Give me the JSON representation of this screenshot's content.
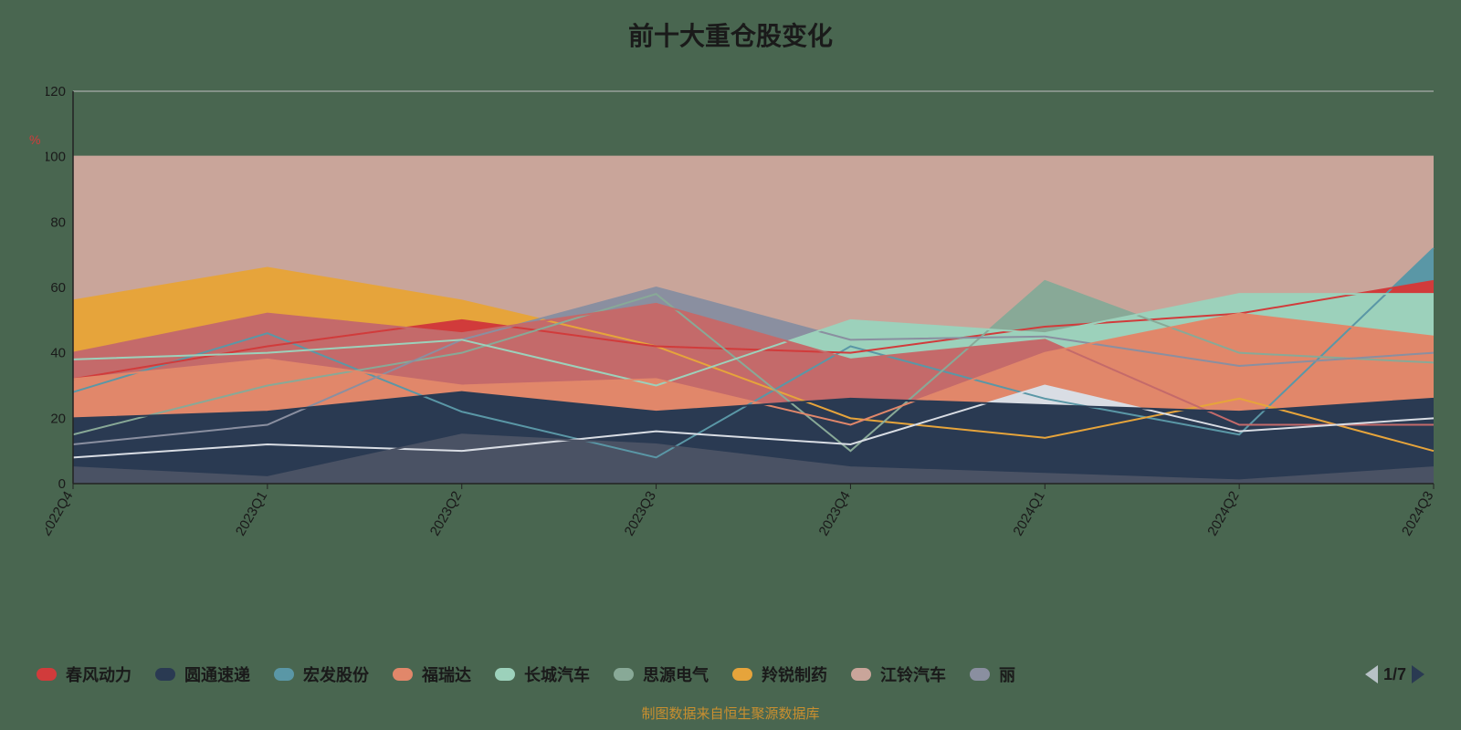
{
  "title": "前十大重仓股变化",
  "y_symbol": "%",
  "footer": "制图数据来自恒生聚源数据库",
  "pager": {
    "current": 1,
    "total": 7
  },
  "chart": {
    "type": "line-stacked-area",
    "background": "#496650",
    "categories": [
      "2022Q4",
      "2023Q1",
      "2023Q2",
      "2023Q3",
      "2023Q4",
      "2024Q1",
      "2024Q2",
      "2024Q3"
    ],
    "ylim": [
      0,
      120
    ],
    "ytick_step": 20,
    "yticks": [
      0,
      20,
      40,
      60,
      80,
      100,
      120
    ],
    "axis_color": "#222222",
    "grid_color": "#bfbfbf",
    "label_fontsize": 16,
    "tick_fontsize": 15,
    "xlabel_rotate": -60,
    "series": [
      {
        "name": "春风动力",
        "color": "#d13b3b",
        "values": [
          32,
          42,
          50,
          42,
          40,
          48,
          52,
          62
        ]
      },
      {
        "name": "圆通速递",
        "color": "#2a3a52",
        "values": [
          20,
          22,
          28,
          22,
          26,
          24,
          22,
          26
        ]
      },
      {
        "name": "宏发股份",
        "color": "#5a97a6",
        "values": [
          28,
          46,
          22,
          8,
          42,
          26,
          15,
          72
        ]
      },
      {
        "name": "福瑞达",
        "color": "#e1876a",
        "values": [
          32,
          38,
          30,
          32,
          18,
          40,
          52,
          45
        ]
      },
      {
        "name": "长城汽车",
        "color": "#9cd1bb",
        "values": [
          38,
          40,
          44,
          30,
          50,
          46,
          58,
          58
        ]
      },
      {
        "name": "思源电气",
        "color": "#88a997",
        "values": [
          15,
          30,
          40,
          58,
          10,
          62,
          40,
          37
        ]
      },
      {
        "name": "羚锐制药",
        "color": "#e6a43b",
        "values": [
          56,
          66,
          56,
          42,
          20,
          14,
          26,
          10
        ]
      },
      {
        "name": "江铃汽车",
        "color": "#c9a59a",
        "values": [
          100,
          100,
          100,
          100,
          100,
          100,
          100,
          100
        ]
      },
      {
        "name": "丽",
        "color": "#8a8fa0",
        "values": [
          12,
          18,
          44,
          60,
          44,
          45,
          36,
          40
        ]
      },
      {
        "name": "_extra1",
        "color": "#d9dde4",
        "values": [
          8,
          12,
          10,
          16,
          12,
          30,
          16,
          20
        ]
      },
      {
        "name": "_extra2",
        "color": "#4a5264",
        "values": [
          5,
          2,
          15,
          12,
          5,
          3,
          1,
          5
        ]
      },
      {
        "name": "_extra3",
        "color": "#c46a6a",
        "values": [
          40,
          52,
          46,
          55,
          38,
          44,
          18,
          18
        ]
      }
    ],
    "legend_series_count": 9
  }
}
